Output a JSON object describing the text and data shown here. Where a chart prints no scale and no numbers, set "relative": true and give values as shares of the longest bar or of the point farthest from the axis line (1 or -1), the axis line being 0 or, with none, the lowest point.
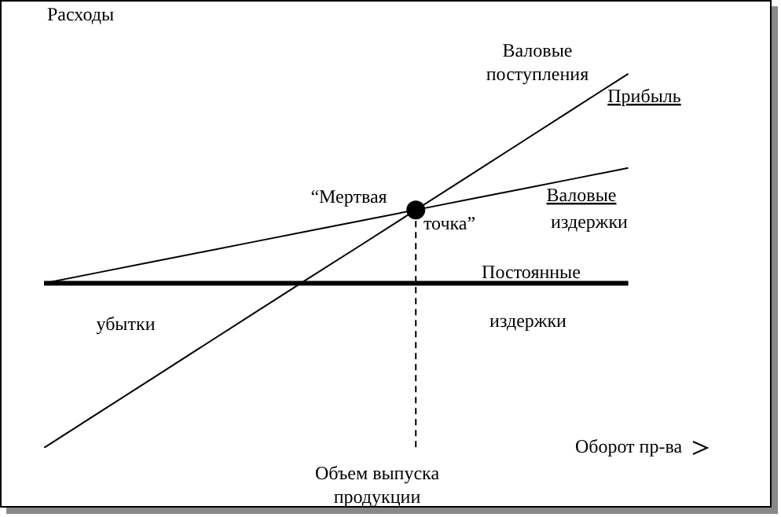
{
  "chart_data": {
    "type": "line",
    "relative": true,
    "ylabel": "Расходы",
    "xlabel": "Оборот пр-ва",
    "grid": false,
    "legend": false,
    "categories": [
      null,
      null,
      null,
      null,
      null,
      null,
      null,
      null,
      null,
      null,
      null,
      null
    ],
    "series": [
      {
        "name": "Валовые поступления",
        "color": "#000000",
        "line_style": "solid",
        "marker": "none",
        "values": [
          0,
          0.091,
          0.182,
          0.273,
          0.364,
          0.455,
          0.545,
          0.636,
          0.727,
          0.818,
          0.909,
          1
        ]
      },
      {
        "name": "Валовые издержки",
        "color": "#000000",
        "line_style": "solid",
        "marker": "none",
        "values": [
          0.44,
          0.468,
          0.496,
          0.524,
          0.552,
          0.58,
          0.608,
          0.636,
          0.664,
          0.692,
          0.72,
          0.748
        ]
      },
      {
        "name": "Постоянные издержки",
        "color": "#000000",
        "line_style": "solid",
        "marker": "none",
        "values": [
          0.44,
          0.44,
          0.44,
          0.44,
          0.44,
          0.44,
          0.44,
          0.44,
          0.44,
          0.44,
          0.44,
          0.44
        ]
      }
    ],
    "annotations": [
      "Прибыль",
      "“Мертвая точка”",
      "убытки",
      "Объем выпуска продукции"
    ]
  }
}
